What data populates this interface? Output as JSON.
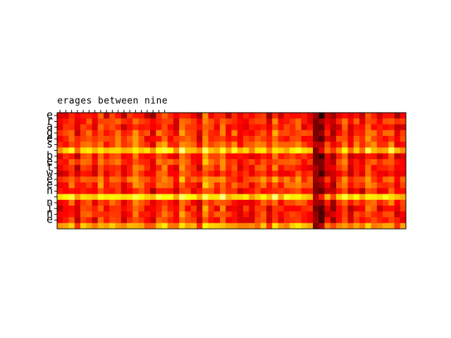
{
  "chart_data": {
    "type": "heatmap",
    "colormap": "hot",
    "n_rows": 20,
    "n_cols": 60,
    "x_tick_labels": [
      "e",
      "r",
      "a",
      "g",
      "e",
      "s",
      " ",
      "b",
      "e",
      "t",
      "w",
      "e",
      "e",
      "n",
      " ",
      "n",
      "i",
      "n",
      "e"
    ],
    "y_tick_labels": [
      "e",
      "r",
      "a",
      "g",
      "e",
      "s",
      " ",
      "b",
      "e",
      "t",
      "w",
      "e",
      "e",
      "n",
      " ",
      "n",
      "i",
      "n",
      "e"
    ],
    "row_profile": [
      0.52,
      0.58,
      0.55,
      0.6,
      0.58,
      0.62,
      0.8,
      0.55,
      0.6,
      0.57,
      0.56,
      0.63,
      0.6,
      0.55,
      0.82,
      0.58,
      0.55,
      0.57,
      0.56,
      0.72
    ],
    "col_profile": [
      0.5,
      0.55,
      0.62,
      0.48,
      0.58,
      0.6,
      0.52,
      0.66,
      0.55,
      0.6,
      0.64,
      0.5,
      0.58,
      0.68,
      0.62,
      0.55,
      0.48,
      0.6,
      0.65,
      0.58,
      0.52,
      0.7,
      0.6,
      0.55,
      0.5,
      0.72,
      0.62,
      0.58,
      0.68,
      0.55,
      0.6,
      0.5,
      0.56,
      0.52,
      0.58,
      0.62,
      0.5,
      0.66,
      0.55,
      0.58,
      0.6,
      0.62,
      0.56,
      0.55,
      0.12,
      0.3,
      0.5,
      0.42,
      0.55,
      0.62,
      0.48,
      0.58,
      0.5,
      0.66,
      0.6,
      0.52,
      0.58,
      0.64,
      0.5,
      0.55
    ]
  }
}
